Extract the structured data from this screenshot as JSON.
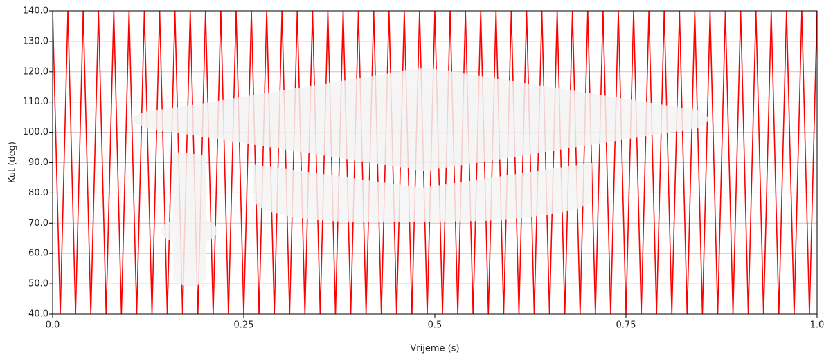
{
  "chart_data": {
    "type": "line",
    "x_label": "Vrijeme (s)",
    "y_label": "Kut (deg)",
    "x": [
      0,
      0.01,
      0.02,
      0.03,
      0.04,
      0.05,
      0.06,
      0.07,
      0.08,
      0.09,
      0.1,
      0.11,
      0.12,
      0.13,
      0.14,
      0.15,
      0.16,
      0.17,
      0.18,
      0.19,
      0.2,
      0.21,
      0.22,
      0.23,
      0.24,
      0.25,
      0.26,
      0.27,
      0.28,
      0.29,
      0.3,
      0.31,
      0.32,
      0.33,
      0.34,
      0.35,
      0.36,
      0.37,
      0.38,
      0.39,
      0.4,
      0.41,
      0.42,
      0.43,
      0.44,
      0.45,
      0.46,
      0.47,
      0.48,
      0.49,
      0.5,
      0.51,
      0.52,
      0.53,
      0.54,
      0.55,
      0.56,
      0.57,
      0.58,
      0.59,
      0.6,
      0.61,
      0.62,
      0.63,
      0.64,
      0.65,
      0.66,
      0.67,
      0.68,
      0.69,
      0.7,
      0.71,
      0.72,
      0.73,
      0.74,
      0.75,
      0.76,
      0.77,
      0.78,
      0.79,
      0.8,
      0.81,
      0.82,
      0.83,
      0.84,
      0.85,
      0.86,
      0.87,
      0.88,
      0.89,
      0.9,
      0.91,
      0.92,
      0.93,
      0.94,
      0.95,
      0.96,
      0.97,
      0.98,
      0.99,
      1
    ],
    "series": [
      {
        "color": "#ff0000",
        "values": [
          140,
          40,
          140,
          40,
          140,
          40,
          140,
          40,
          140,
          40,
          140,
          40,
          140,
          40,
          140,
          40,
          140,
          40,
          140,
          40,
          140,
          40,
          140,
          40,
          140,
          40,
          140,
          40,
          140,
          40,
          140,
          40,
          140,
          40,
          140,
          40,
          140,
          40,
          140,
          40,
          140,
          40,
          140,
          40,
          140,
          40,
          140,
          40,
          140,
          40,
          140,
          40,
          140,
          40,
          140,
          40,
          140,
          40,
          140,
          40,
          140,
          40,
          140,
          40,
          140,
          40,
          140,
          40,
          140,
          40,
          140,
          40,
          140,
          40,
          140,
          40,
          140,
          40,
          140,
          40,
          140,
          40,
          140,
          40,
          140,
          40,
          140,
          40,
          140,
          40,
          140,
          40,
          140,
          40,
          140,
          40,
          140,
          40,
          140,
          40,
          140
        ]
      }
    ],
    "xlim": [
      0,
      1
    ],
    "ylim": [
      40,
      140
    ],
    "xticks": [
      {
        "value": 0,
        "label": "0.0"
      },
      0.25,
      0.5,
      0.75,
      {
        "value": 1,
        "label": "1.0"
      }
    ],
    "yticks": [
      {
        "value": 40,
        "label": "40.0"
      },
      {
        "value": 50,
        "label": "50.0"
      },
      {
        "value": 60,
        "label": "60.0"
      },
      {
        "value": 70,
        "label": "70.0"
      },
      {
        "value": 80,
        "label": "80.0"
      },
      {
        "value": 90,
        "label": "90.0"
      },
      {
        "value": 100,
        "label": "100.0"
      },
      {
        "value": 110,
        "label": "110.0"
      },
      {
        "value": 120,
        "label": "120.0"
      },
      {
        "value": 130,
        "label": "130.0"
      },
      {
        "value": 140,
        "label": "140.0"
      }
    ],
    "grid": true
  }
}
